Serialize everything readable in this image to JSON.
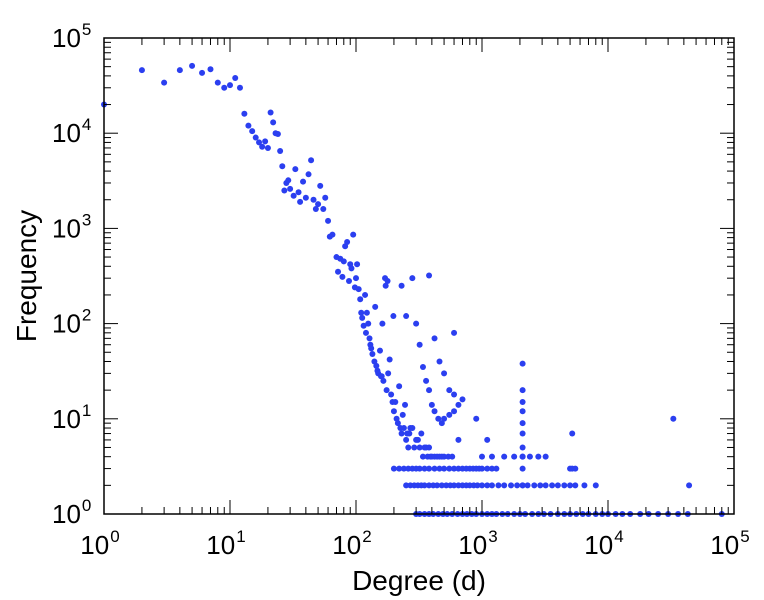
{
  "chart_data": {
    "type": "scatter",
    "title": "",
    "xlabel": "Degree (d)",
    "ylabel": "Frequency",
    "x_scale": "log",
    "y_scale": "log",
    "xlim": [
      1,
      100000
    ],
    "ylim": [
      1,
      100000
    ],
    "grid": false,
    "point_color": "#2b3ff0",
    "x_ticks": [
      {
        "base": "10",
        "exp": "0"
      },
      {
        "base": "10",
        "exp": "1"
      },
      {
        "base": "10",
        "exp": "2"
      },
      {
        "base": "10",
        "exp": "3"
      },
      {
        "base": "10",
        "exp": "4"
      },
      {
        "base": "10",
        "exp": "5"
      }
    ],
    "y_ticks": [
      {
        "base": "10",
        "exp": "0"
      },
      {
        "base": "10",
        "exp": "1"
      },
      {
        "base": "10",
        "exp": "2"
      },
      {
        "base": "10",
        "exp": "3"
      },
      {
        "base": "10",
        "exp": "4"
      },
      {
        "base": "10",
        "exp": "5"
      }
    ],
    "points": [
      [
        1,
        20000
      ],
      [
        2,
        46000
      ],
      [
        3,
        34000
      ],
      [
        4,
        46000
      ],
      [
        5,
        51000
      ],
      [
        6,
        43000
      ],
      [
        7,
        47000
      ],
      [
        8,
        34000
      ],
      [
        9,
        30000
      ],
      [
        10,
        32000
      ],
      [
        11,
        38000
      ],
      [
        12,
        30000
      ],
      [
        13,
        16000
      ],
      [
        14,
        12000
      ],
      [
        15,
        10500
      ],
      [
        16,
        9000
      ],
      [
        17,
        8000
      ],
      [
        18,
        7200
      ],
      [
        19,
        8200
      ],
      [
        20,
        7000
      ],
      [
        21,
        16500
      ],
      [
        22,
        13000
      ],
      [
        23,
        10000
      ],
      [
        24,
        9800
      ],
      [
        25,
        6500
      ],
      [
        26,
        4500
      ],
      [
        27,
        2500
      ],
      [
        28,
        3000
      ],
      [
        29,
        3200
      ],
      [
        30,
        2600
      ],
      [
        32,
        2200
      ],
      [
        33,
        4200
      ],
      [
        35,
        2400
      ],
      [
        36,
        1900
      ],
      [
        38,
        3100
      ],
      [
        40,
        2100
      ],
      [
        42,
        3700
      ],
      [
        44,
        5200
      ],
      [
        46,
        2000
      ],
      [
        48,
        1600
      ],
      [
        50,
        1800
      ],
      [
        52,
        2800
      ],
      [
        55,
        1600
      ],
      [
        57,
        2100
      ],
      [
        60,
        1200
      ],
      [
        62,
        820
      ],
      [
        65,
        860
      ],
      [
        70,
        500
      ],
      [
        72,
        350
      ],
      [
        75,
        480
      ],
      [
        78,
        310
      ],
      [
        80,
        450
      ],
      [
        82,
        650
      ],
      [
        85,
        720
      ],
      [
        88,
        280
      ],
      [
        90,
        420
      ],
      [
        92,
        380
      ],
      [
        95,
        860
      ],
      [
        98,
        240
      ],
      [
        100,
        300
      ],
      [
        102,
        420
      ],
      [
        105,
        230
      ],
      [
        108,
        180
      ],
      [
        110,
        130
      ],
      [
        112,
        115
      ],
      [
        115,
        95
      ],
      [
        118,
        200
      ],
      [
        120,
        80
      ],
      [
        122,
        130
      ],
      [
        125,
        100
      ],
      [
        128,
        70
      ],
      [
        130,
        60
      ],
      [
        132,
        55
      ],
      [
        135,
        48
      ],
      [
        140,
        40
      ],
      [
        142,
        150
      ],
      [
        145,
        36
      ],
      [
        148,
        32
      ],
      [
        150,
        30
      ],
      [
        155,
        52
      ],
      [
        158,
        28
      ],
      [
        160,
        28
      ],
      [
        162,
        100
      ],
      [
        165,
        25
      ],
      [
        170,
        300
      ],
      [
        172,
        250
      ],
      [
        175,
        20
      ],
      [
        178,
        280
      ],
      [
        180,
        30
      ],
      [
        185,
        42
      ],
      [
        190,
        18
      ],
      [
        195,
        15
      ],
      [
        198,
        120
      ],
      [
        200,
        12
      ],
      [
        205,
        15
      ],
      [
        210,
        10
      ],
      [
        215,
        9
      ],
      [
        220,
        22
      ],
      [
        225,
        8
      ],
      [
        230,
        7
      ],
      [
        235,
        11
      ],
      [
        240,
        8
      ],
      [
        245,
        14
      ],
      [
        250,
        6
      ],
      [
        255,
        7
      ],
      [
        260,
        5
      ],
      [
        265,
        7
      ],
      [
        270,
        8
      ],
      [
        280,
        8
      ],
      [
        290,
        5
      ],
      [
        300,
        6
      ],
      [
        310,
        6
      ],
      [
        320,
        5
      ],
      [
        330,
        7
      ],
      [
        340,
        4
      ],
      [
        350,
        5
      ],
      [
        360,
        5
      ],
      [
        370,
        4
      ],
      [
        380,
        5
      ],
      [
        390,
        4
      ],
      [
        400,
        4
      ],
      [
        420,
        4
      ],
      [
        440,
        4
      ],
      [
        460,
        4
      ],
      [
        480,
        4
      ],
      [
        500,
        4
      ],
      [
        540,
        4
      ],
      [
        580,
        4
      ],
      [
        230,
        250
      ],
      [
        250,
        120
      ],
      [
        280,
        300
      ],
      [
        300,
        100
      ],
      [
        320,
        60
      ],
      [
        340,
        35
      ],
      [
        360,
        25
      ],
      [
        380,
        20
      ],
      [
        400,
        14
      ],
      [
        420,
        12
      ],
      [
        450,
        10
      ],
      [
        480,
        9
      ],
      [
        500,
        10
      ],
      [
        550,
        11
      ],
      [
        600,
        12
      ],
      [
        650,
        14
      ],
      [
        700,
        16
      ],
      [
        380,
        320
      ],
      [
        420,
        70
      ],
      [
        460,
        40
      ],
      [
        500,
        30
      ],
      [
        550,
        20
      ],
      [
        600,
        18
      ],
      [
        600,
        80
      ],
      [
        650,
        6
      ],
      [
        200,
        3
      ],
      [
        220,
        3
      ],
      [
        240,
        3
      ],
      [
        260,
        3
      ],
      [
        280,
        3
      ],
      [
        300,
        3
      ],
      [
        320,
        3
      ],
      [
        350,
        3
      ],
      [
        380,
        3
      ],
      [
        420,
        3
      ],
      [
        460,
        3
      ],
      [
        500,
        3
      ],
      [
        550,
        3
      ],
      [
        600,
        3
      ],
      [
        650,
        3
      ],
      [
        700,
        3
      ],
      [
        750,
        3
      ],
      [
        800,
        3
      ],
      [
        850,
        3
      ],
      [
        900,
        3
      ],
      [
        950,
        3
      ],
      [
        1000,
        3
      ],
      [
        1100,
        3
      ],
      [
        1200,
        3
      ],
      [
        1300,
        3
      ],
      [
        250,
        2
      ],
      [
        270,
        2
      ],
      [
        290,
        2
      ],
      [
        310,
        2
      ],
      [
        330,
        2
      ],
      [
        350,
        2
      ],
      [
        380,
        2
      ],
      [
        410,
        2
      ],
      [
        440,
        2
      ],
      [
        480,
        2
      ],
      [
        520,
        2
      ],
      [
        560,
        2
      ],
      [
        600,
        2
      ],
      [
        650,
        2
      ],
      [
        700,
        2
      ],
      [
        750,
        2
      ],
      [
        800,
        2
      ],
      [
        860,
        2
      ],
      [
        920,
        2
      ],
      [
        1000,
        2
      ],
      [
        1100,
        2
      ],
      [
        1200,
        2
      ],
      [
        1350,
        2
      ],
      [
        1500,
        2
      ],
      [
        1700,
        2
      ],
      [
        1900,
        2
      ],
      [
        2100,
        2
      ],
      [
        2300,
        2
      ],
      [
        2600,
        2
      ],
      [
        2900,
        2
      ],
      [
        3200,
        2
      ],
      [
        3600,
        2
      ],
      [
        4000,
        2
      ],
      [
        4500,
        2
      ],
      [
        5000,
        2
      ],
      [
        5500,
        2
      ],
      [
        6500,
        2
      ],
      [
        8000,
        2
      ],
      [
        1000,
        4
      ],
      [
        1200,
        4
      ],
      [
        1500,
        4
      ],
      [
        1800,
        4
      ],
      [
        2100,
        4
      ],
      [
        2400,
        4
      ],
      [
        2800,
        4
      ],
      [
        3200,
        4
      ],
      [
        5000,
        3
      ],
      [
        5500,
        3
      ],
      [
        300,
        1
      ],
      [
        320,
        1
      ],
      [
        350,
        1
      ],
      [
        380,
        1
      ],
      [
        410,
        1
      ],
      [
        450,
        1
      ],
      [
        490,
        1
      ],
      [
        530,
        1
      ],
      [
        580,
        1
      ],
      [
        640,
        1
      ],
      [
        700,
        1
      ],
      [
        760,
        1
      ],
      [
        830,
        1
      ],
      [
        900,
        1
      ],
      [
        1000,
        1
      ],
      [
        1100,
        1
      ],
      [
        1200,
        1
      ],
      [
        1300,
        1
      ],
      [
        1450,
        1
      ],
      [
        1600,
        1
      ],
      [
        1800,
        1
      ],
      [
        2000,
        1
      ],
      [
        2200,
        1
      ],
      [
        2500,
        1
      ],
      [
        2800,
        1
      ],
      [
        3100,
        1
      ],
      [
        3500,
        1
      ],
      [
        4000,
        1
      ],
      [
        4500,
        1
      ],
      [
        5000,
        1
      ],
      [
        5600,
        1
      ],
      [
        6300,
        1
      ],
      [
        7000,
        1
      ],
      [
        8000,
        1
      ],
      [
        9000,
        1
      ],
      [
        10000,
        1
      ],
      [
        11500,
        1
      ],
      [
        13000,
        1
      ],
      [
        15000,
        1
      ],
      [
        18000,
        1
      ],
      [
        21000,
        1
      ],
      [
        25000,
        1
      ],
      [
        30000,
        1
      ],
      [
        36000,
        1
      ],
      [
        43000,
        1
      ],
      [
        80000,
        1
      ],
      [
        900,
        10
      ],
      [
        1100,
        6
      ],
      [
        2100,
        38
      ],
      [
        2100,
        20
      ],
      [
        2100,
        15
      ],
      [
        2100,
        12
      ],
      [
        2100,
        9
      ],
      [
        2100,
        7
      ],
      [
        2100,
        5
      ],
      [
        2100,
        4
      ],
      [
        2100,
        3
      ],
      [
        2100,
        2
      ],
      [
        5200,
        7
      ],
      [
        5200,
        3
      ],
      [
        33000,
        10
      ],
      [
        44000,
        2
      ]
    ]
  }
}
